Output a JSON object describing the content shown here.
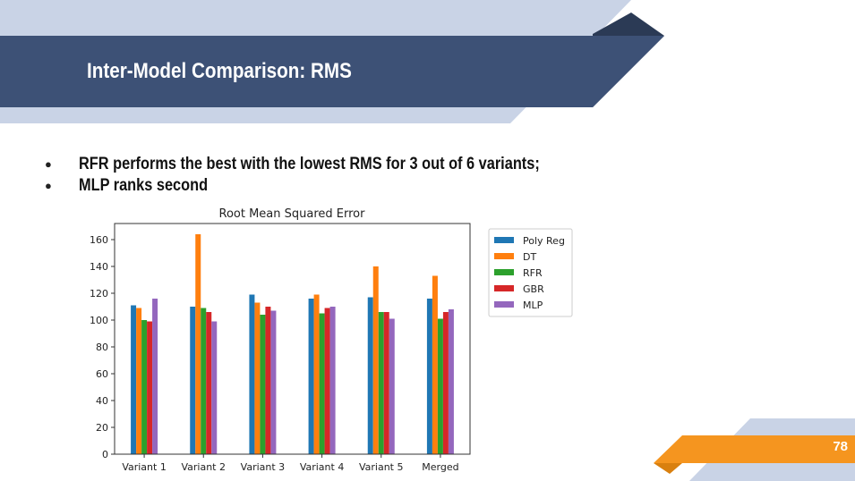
{
  "slide": {
    "title": "Inter-Model Comparison: RMS",
    "bullets": [
      "RFR performs the best with the lowest RMS for 3 out of 6 variants;",
      "MLP ranks second"
    ],
    "bullet_glyph": "●",
    "page_number": "78"
  },
  "colors": {
    "header_dark": "#3d5176",
    "header_navy": "#2b3a55",
    "header_light": "#c9d3e6",
    "footer_orange": "#f5951f",
    "footer_orange_dark": "#d9800f"
  },
  "chart_data": {
    "type": "bar",
    "title": "Root Mean Squared Error",
    "categories": [
      "Variant 1",
      "Variant 2",
      "Variant 3",
      "Variant 4",
      "Variant 5",
      "Merged"
    ],
    "series": [
      {
        "name": "Poly Reg",
        "color": "#1f77b4",
        "values": [
          111,
          110,
          119,
          116,
          117,
          116
        ]
      },
      {
        "name": "DT",
        "color": "#ff7f0e",
        "values": [
          109,
          164,
          113,
          119,
          140,
          133
        ]
      },
      {
        "name": "RFR",
        "color": "#2ca02c",
        "values": [
          100,
          109,
          104,
          105,
          106,
          101
        ]
      },
      {
        "name": "GBR",
        "color": "#d62728",
        "values": [
          99,
          106,
          110,
          109,
          106,
          106
        ]
      },
      {
        "name": "MLP",
        "color": "#9467bd",
        "values": [
          116,
          99,
          107,
          110,
          101,
          108
        ]
      }
    ],
    "ylim": [
      0,
      172
    ],
    "yticks": [
      0,
      20,
      40,
      60,
      80,
      100,
      120,
      140,
      160
    ],
    "legend": "upper-right-outside",
    "grid": false
  }
}
